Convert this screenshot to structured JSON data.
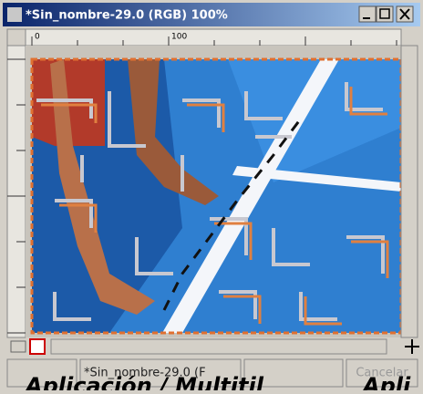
{
  "window": {
    "title": "*Sin_nombre-29.0 (RGB) 100%"
  },
  "rulers": {
    "top": [
      "0",
      "100"
    ]
  },
  "status": {
    "file": "*Sin_nombre-29.0 (F",
    "cancel": "Cancelar"
  },
  "caption": {
    "left": "Aplicación / Multitil",
    "right": "Apli"
  }
}
